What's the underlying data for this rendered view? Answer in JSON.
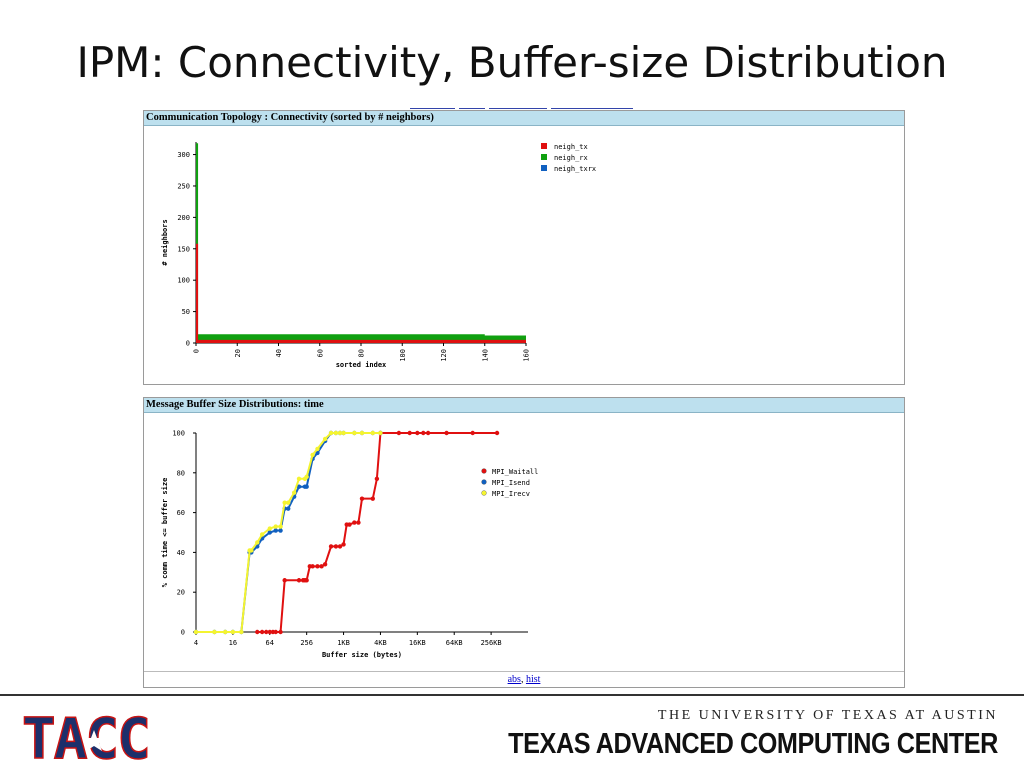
{
  "slide": {
    "title": "IPM: Connectivity, Buffer-size Distribution",
    "footer_links": {
      "abs": "abs",
      "separator": ", ",
      "hist": "hist"
    },
    "university": "THE UNIVERSITY OF TEXAS AT AUSTIN",
    "center": "TEXAS ADVANCED COMPUTING CENTER",
    "logo_text": "TACC"
  },
  "colors": {
    "red": "#e01010",
    "green": "#10a010",
    "blue": "#1060c0",
    "yellow": "#f4f430",
    "panel_header": "#bde0ee"
  },
  "chart_data": [
    {
      "type": "bar",
      "title": "Communication Topology : Connectivity (sorted by # neighbors)",
      "xlabel": "sorted index",
      "ylabel": "# neighbors",
      "xlim": [
        0,
        160
      ],
      "ylim": [
        0,
        320
      ],
      "xticks": [
        0,
        20,
        40,
        60,
        80,
        100,
        120,
        140,
        160
      ],
      "yticks": [
        0,
        50,
        100,
        150,
        200,
        250,
        300
      ],
      "legend_position": "top-right",
      "series": [
        {
          "name": "neigh_tx",
          "color": "#e01010",
          "x": [
            0,
            1,
            140,
            160
          ],
          "values": [
            158,
            5,
            5,
            5
          ]
        },
        {
          "name": "neigh_rx",
          "color": "#10a010",
          "x": [
            0,
            1,
            140,
            160
          ],
          "values": [
            318,
            14,
            12,
            10
          ]
        },
        {
          "name": "neigh_txrx",
          "color": "#1060c0",
          "x": [],
          "values": []
        }
      ]
    },
    {
      "type": "line",
      "title": "Message Buffer Size Distributions: time",
      "xlabel": "Buffer size (bytes)",
      "ylabel": "% comm time <= buffer size",
      "x_scale": "log2",
      "xlim": [
        4,
        1048576
      ],
      "ylim": [
        0,
        100
      ],
      "xticks": [
        4,
        16,
        64,
        256,
        1024,
        4096,
        16384,
        65536,
        262144
      ],
      "xticklabels": [
        "4",
        "16",
        "64",
        "256",
        "1KB",
        "4KB",
        "16KB",
        "64KB",
        "256KB"
      ],
      "yticks": [
        0,
        20,
        40,
        60,
        80,
        100
      ],
      "legend_position": "right",
      "series": [
        {
          "name": "MPI_Waitall",
          "color": "#e01010",
          "x": [
            40,
            48,
            56,
            64,
            72,
            80,
            96,
            112,
            192,
            224,
            240,
            256,
            288,
            320,
            384,
            448,
            512,
            640,
            768,
            896,
            1024,
            1152,
            1280,
            1536,
            1792,
            2048,
            3072,
            3584,
            4096,
            8192,
            12288,
            16384,
            20480,
            24576,
            49152,
            131072,
            327680
          ],
          "values": [
            0,
            0,
            0,
            0,
            0,
            0,
            0,
            26,
            26,
            26,
            26,
            26,
            33,
            33,
            33,
            33,
            34,
            43,
            43,
            43,
            44,
            54,
            54,
            55,
            55,
            67,
            67,
            77,
            100,
            100,
            100,
            100,
            100,
            100,
            100,
            100,
            100
          ]
        },
        {
          "name": "MPI_Isend",
          "color": "#1060c0",
          "x": [
            4,
            8,
            12,
            16,
            22,
            30,
            32,
            40,
            48,
            64,
            80,
            96,
            112,
            128,
            160,
            192,
            240,
            256,
            320,
            384,
            512,
            640,
            768,
            896,
            1024,
            1536,
            2048,
            3072,
            4096
          ],
          "values": [
            0,
            0,
            0,
            0,
            0,
            40,
            40,
            43,
            47,
            50,
            51,
            51,
            62,
            62,
            68,
            73,
            73,
            73,
            87,
            90,
            96,
            100,
            100,
            100,
            100,
            100,
            100,
            100,
            100
          ]
        },
        {
          "name": "MPI_Irecv",
          "color": "#f4f430",
          "x": [
            4,
            8,
            12,
            16,
            22,
            30,
            32,
            40,
            48,
            64,
            80,
            96,
            112,
            128,
            160,
            192,
            240,
            256,
            320,
            384,
            512,
            640,
            768,
            896,
            1024,
            1536,
            2048,
            3072,
            4096
          ],
          "values": [
            0,
            0,
            0,
            0,
            0,
            41,
            41,
            45,
            49,
            52,
            53,
            53,
            65,
            65,
            70,
            77,
            77,
            78,
            89,
            92,
            97,
            100,
            100,
            100,
            100,
            100,
            100,
            100,
            100
          ]
        }
      ]
    }
  ]
}
